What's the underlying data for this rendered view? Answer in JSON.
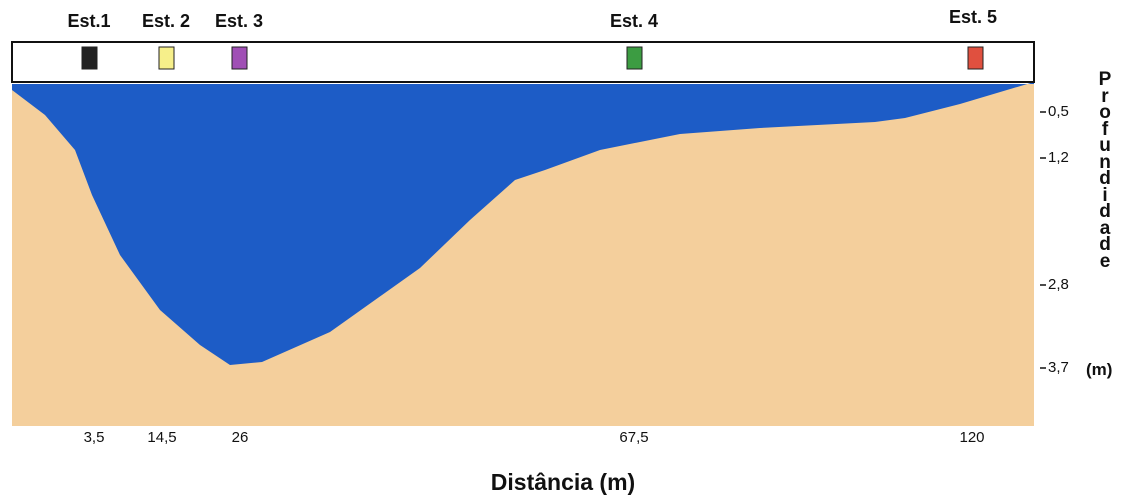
{
  "stations": [
    {
      "label": "Est.1",
      "color": "#222222"
    },
    {
      "label": "Est. 2",
      "color": "#f6ef8a"
    },
    {
      "label": "Est. 3",
      "color": "#a04fb5"
    },
    {
      "label": "Est. 4",
      "color": "#3c9c42"
    },
    {
      "label": "Est. 5",
      "color": "#e0503f"
    }
  ],
  "x_axis": {
    "title": "Distância (m)",
    "ticks": [
      "3,5",
      "14,5",
      "26",
      "67,5",
      "120"
    ]
  },
  "y_axis": {
    "title": "Profundidade",
    "unit": "(m)",
    "ticks": [
      "0,5",
      "1,2",
      "2,8",
      "3,7"
    ]
  }
}
